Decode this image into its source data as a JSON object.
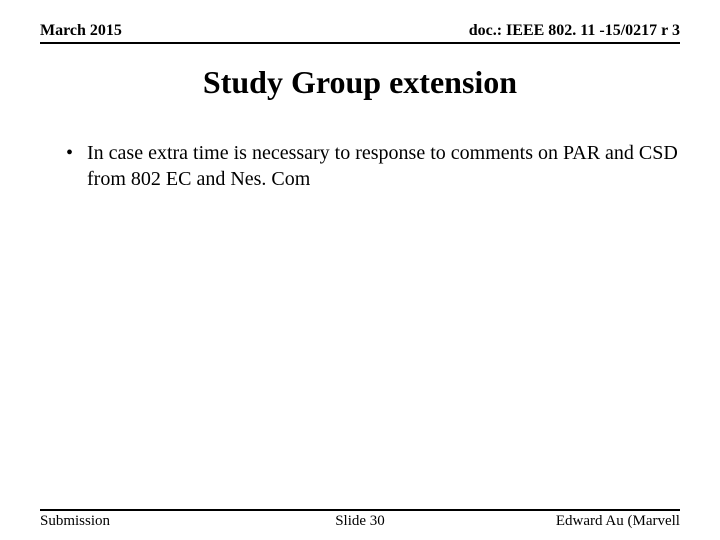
{
  "header": {
    "left": "March 2015",
    "right": "doc.: IEEE 802. 11 -15/0217 r 3"
  },
  "title": "Study Group extension",
  "bullets": [
    "In case extra time is necessary to response to comments on PAR and CSD from 802 EC and Nes. Com"
  ],
  "footer": {
    "left": "Submission",
    "center": "Slide 30",
    "right": "Edward Au (Marvell"
  },
  "styles": {
    "background_color": "#ffffff",
    "text_color": "#000000",
    "header_fontsize": 16,
    "title_fontsize": 32,
    "body_fontsize": 20,
    "footer_fontsize": 15,
    "rule_color": "#000000",
    "rule_width": 2,
    "font_family": "Times New Roman"
  }
}
